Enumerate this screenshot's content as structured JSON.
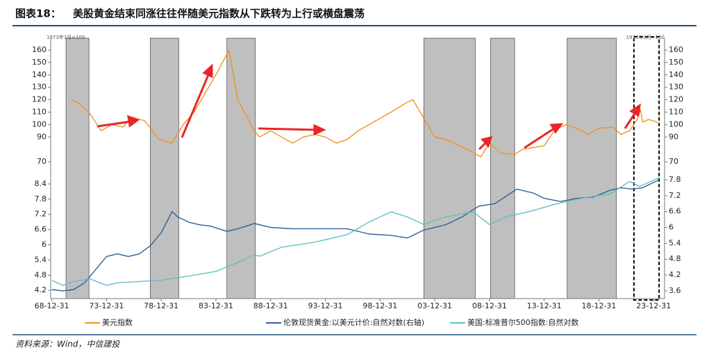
{
  "title_label": "图表18：",
  "title": "美股黄金结束同涨往往伴随美元指数从下跌转为上行或横盘震荡",
  "source": "资料来源：Wind，中信建投",
  "xlim": [
    1968.9,
    2025.0
  ],
  "xticks": [
    {
      "value": 1969,
      "label": "68-12-31"
    },
    {
      "value": 1974,
      "label": "73-12-31"
    },
    {
      "value": 1979,
      "label": "78-12-31"
    },
    {
      "value": 1984,
      "label": "83-12-31"
    },
    {
      "value": 1989,
      "label": "88-12-31"
    },
    {
      "value": 1994,
      "label": "93-12-31"
    },
    {
      "value": 1999,
      "label": "98-12-31"
    },
    {
      "value": 2004,
      "label": "03-12-31"
    },
    {
      "value": 2009,
      "label": "08-12-31"
    },
    {
      "value": 2014,
      "label": "13-12-31"
    },
    {
      "value": 2019,
      "label": "18-12-31"
    },
    {
      "value": 2024,
      "label": "23-12-31"
    }
  ],
  "shaded_periods": [
    [
      1970.3,
      1972.4
    ],
    [
      1978.0,
      1980.6
    ],
    [
      1985.0,
      1987.6
    ],
    [
      2003.0,
      2007.7
    ],
    [
      2009.1,
      2011.3
    ],
    [
      2016.1,
      2020.6
    ]
  ],
  "highlight_box": [
    2022.2,
    2024.5
  ],
  "chart_data": [
    {
      "type": "line",
      "annotation": "1973年3月=100",
      "ylim": [
        65,
        165.6
      ],
      "yticks": [
        70,
        90,
        100,
        110,
        120,
        130,
        140,
        150,
        160
      ],
      "y2lim": [
        65,
        165.6
      ],
      "y2ticks": [
        70,
        90,
        100,
        110,
        120,
        130,
        140,
        150,
        160
      ],
      "series": [
        {
          "name": "美元指数",
          "color": "#f0931e",
          "x": [
            1970.8,
            1971.5,
            1972.4,
            1973.5,
            1974.5,
            1975.5,
            1976.3,
            1977.5,
            1978.8,
            1980.0,
            1981.0,
            1982.0,
            1983.0,
            1984.0,
            1985.2,
            1986.0,
            1987.5,
            1988.0,
            1989.0,
            1990.0,
            1991.0,
            1992.0,
            1993.0,
            1994.0,
            1995.0,
            1996.0,
            1997.0,
            1998.0,
            1999.0,
            2000.0,
            2001.5,
            2002.0,
            2003.0,
            2004.0,
            2005.0,
            2007.0,
            2008.2,
            2009.0,
            2010.0,
            2011.3,
            2012.0,
            2014.0,
            2015.0,
            2016.0,
            2017.5,
            2018.0,
            2019.0,
            2020.3,
            2021.0,
            2021.8,
            2022.5,
            2022.8,
            2023.0,
            2023.5,
            2024.0,
            2024.5
          ],
          "values": [
            120,
            117,
            110,
            95,
            100,
            98,
            106,
            103,
            88,
            85,
            100,
            110,
            125,
            140,
            160,
            120,
            95,
            90,
            95,
            90,
            85,
            90,
            92,
            90,
            85,
            88,
            95,
            100,
            105,
            110,
            118,
            120,
            105,
            90,
            88,
            80,
            74,
            85,
            77,
            76,
            80,
            83,
            96,
            100,
            95,
            92,
            97,
            98,
            92,
            95,
            104,
            112,
            102,
            104,
            103,
            101
          ]
        }
      ]
    },
    {
      "type": "line",
      "ylim": [
        3.93,
        8.7
      ],
      "yticks": [
        4.2,
        4.8,
        5.4,
        6.0,
        6.6,
        7.2,
        7.8,
        8.4
      ],
      "y2lim": [
        3.36,
        7.93
      ],
      "y2ticks": [
        3.6,
        4.2,
        4.8,
        5.4,
        6.0,
        6.6,
        7.2,
        7.8
      ],
      "series": [
        {
          "name": "伦敦现货黄金:以美元计价:自然对数(右轴)",
          "color": "#2f5f98",
          "axis": "y2",
          "x": [
            1969,
            1970,
            1971,
            1972,
            1973,
            1974,
            1975,
            1976,
            1977,
            1978,
            1979,
            1980,
            1980.5,
            1981.5,
            1982.5,
            1983.5,
            1985,
            1986,
            1987.5,
            1989,
            1991,
            1993,
            1996,
            1998,
            2000,
            2001.5,
            2003,
            2005,
            2006.5,
            2008,
            2009.5,
            2011.5,
            2013,
            2014,
            2015.5,
            2017,
            2018.5,
            2020,
            2021,
            2022,
            2023,
            2024,
            2024.5
          ],
          "values": [
            3.65,
            3.6,
            3.65,
            3.9,
            4.4,
            4.9,
            5.0,
            4.9,
            5.0,
            5.3,
            5.8,
            6.6,
            6.4,
            6.2,
            6.1,
            6.05,
            5.85,
            5.95,
            6.15,
            6.0,
            5.95,
            5.95,
            5.95,
            5.75,
            5.7,
            5.6,
            5.9,
            6.1,
            6.4,
            6.8,
            6.9,
            7.45,
            7.3,
            7.1,
            6.98,
            7.1,
            7.15,
            7.4,
            7.5,
            7.45,
            7.5,
            7.7,
            7.8
          ]
        },
        {
          "name": "美国:标准普尔500指数:自然对数",
          "color": "#5fbfc4",
          "x": [
            1969,
            1970,
            1971,
            1972.5,
            1974,
            1975,
            1977,
            1979,
            1980.5,
            1982,
            1984,
            1986,
            1987.5,
            1988,
            1990,
            1993,
            1996,
            1998,
            2000,
            2001.5,
            2003,
            2005,
            2007.5,
            2009,
            2010.5,
            2013,
            2015,
            2017,
            2019,
            2020,
            2021.8,
            2022.7,
            2024,
            2024.5
          ],
          "values": [
            4.6,
            4.4,
            4.55,
            4.65,
            4.4,
            4.5,
            4.55,
            4.6,
            4.7,
            4.8,
            4.95,
            5.3,
            5.6,
            5.55,
            5.9,
            6.1,
            6.4,
            6.9,
            7.3,
            7.1,
            6.8,
            7.1,
            7.3,
            6.8,
            7.1,
            7.35,
            7.6,
            7.8,
            7.95,
            8.0,
            8.5,
            8.3,
            8.55,
            8.65
          ]
        }
      ]
    }
  ]
}
